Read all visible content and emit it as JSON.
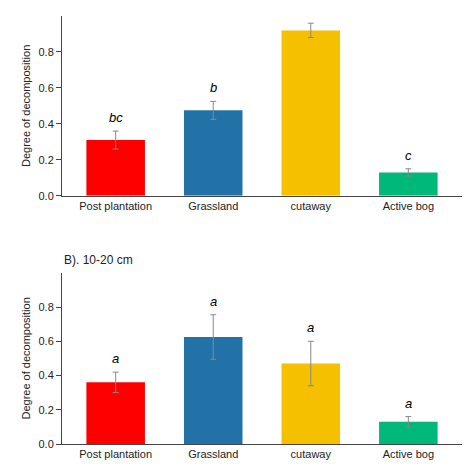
{
  "chart_data": [
    {
      "type": "bar",
      "categories": [
        "Post plantation",
        "Grassland",
        "cutaway",
        "Active bog"
      ],
      "values": [
        0.31,
        0.475,
        0.92,
        0.13
      ],
      "errors": [
        0.05,
        0.05,
        0.04,
        0.02
      ],
      "colors": [
        "#ff0000",
        "#2272a8",
        "#f5c000",
        "#00b87a"
      ],
      "annotations": [
        "bc",
        "b",
        null,
        "c"
      ],
      "ylabel": "Degree of decomposition",
      "ylim": [
        0.0,
        1.0
      ],
      "yticks": [
        {
          "value": 0.0,
          "label": "0.0"
        },
        0.2,
        0.4,
        0.6,
        0.8
      ],
      "grid": false
    },
    {
      "type": "bar",
      "title": "B). 10-20 cm",
      "categories": [
        "Post plantation",
        "Grassland",
        "cutaway",
        "Active bog"
      ],
      "values": [
        0.36,
        0.625,
        0.47,
        0.13
      ],
      "errors": [
        0.06,
        0.13,
        0.13,
        0.03
      ],
      "colors": [
        "#ff0000",
        "#2272a8",
        "#f5c000",
        "#00b87a"
      ],
      "annotations": [
        "a",
        "a",
        "a",
        "a"
      ],
      "ylabel": "Degree of decomposition",
      "ylim": [
        0.0,
        1.0
      ],
      "yticks": [
        {
          "value": 0.0,
          "label": "0.0"
        },
        0.2,
        0.4,
        0.6,
        0.8
      ],
      "grid": false
    }
  ]
}
